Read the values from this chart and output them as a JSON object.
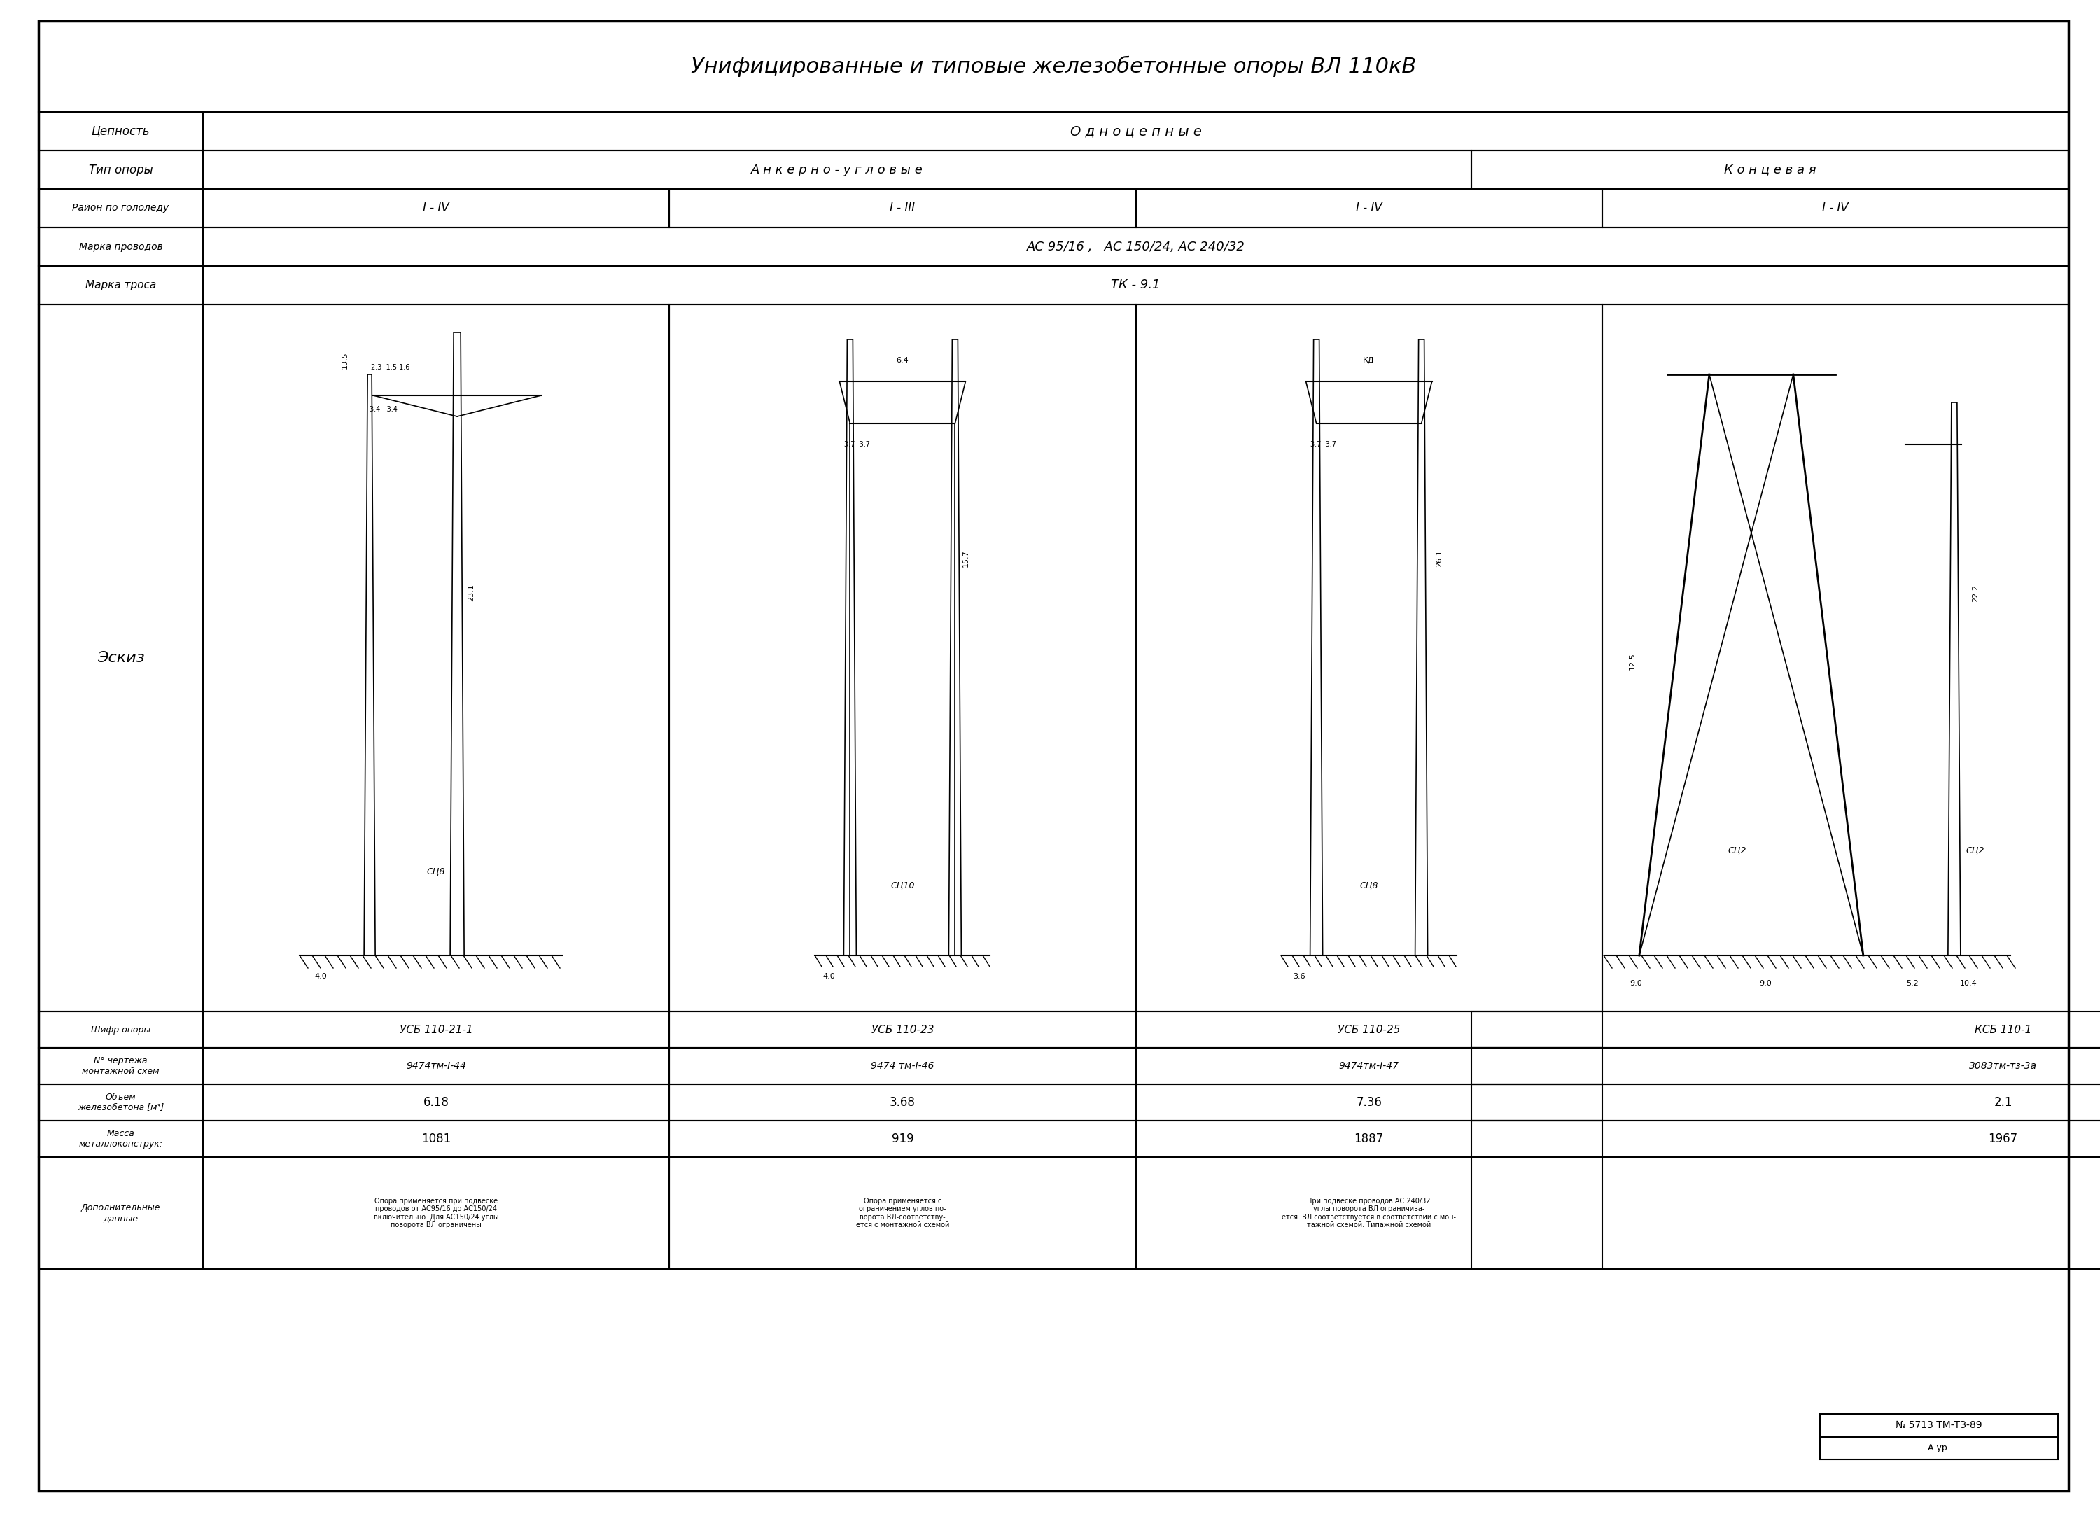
{
  "title": "Унифицированные и типовые железобетонные опоры ВЛ 110кВ",
  "bg_color": "#ffffff",
  "line_color": "#000000",
  "table": {
    "row_labels": [
      "Цепность",
      "Тип опоры",
      "Район по гололеду",
      "Марка проводов",
      "Марка троса"
    ],
    "sketch_label": "Эскиз",
    "col_groups": [
      {
        "name": "Одноцепные",
        "span": 4
      }
    ],
    "type_row": [
      "Анкерно - угловые",
      "",
      "",
      "Концевая"
    ],
    "raion_row": [
      "I - IV",
      "I - III",
      "I - IV",
      "I - IV"
    ],
    "marka_provodov": "АС 95/16 ,   АС 150/24, АС 240/32",
    "marka_trosa": "ТК - 9.1",
    "bottom_rows": {
      "shifr": [
        "УСБ 110-21-1",
        "УСБ 110-23",
        "УСБ 110-25",
        "КСБ 110-1"
      ],
      "chertezh": [
        "9474тм-I-44",
        "9474 тм-I-46",
        "9474тм-I-47",
        "3083тм-тз-3а"
      ],
      "objem": [
        "6.18",
        "3.68",
        "7.36",
        "2.1"
      ],
      "massa": [
        "1081",
        "919",
        "1887",
        "1967"
      ],
      "dop_label": "Дополнительные\nданные",
      "dop_data": [
        "Опора применяется при подвеске\nпроводов от АС95/16 до АС150/24\nвключительно. Для АС150/24 углы\nповорота ВЛ ограничены",
        "Опора применяется с\nограничением углов по-\nворота ВЛ-соответству-\nется с монтажной схемой",
        "При подвеске проводов АС 240/32\nуглы поворота ВЛ ограничива-\nется. ВЛ соответствуется в соответствии с мон-\nтажной схемой. Типажной схемой",
        ""
      ]
    }
  },
  "stamp": {
    "text": "№ 5713 ТМ-ТЗ-89",
    "subtext": "А ур."
  },
  "font_size_title": 22,
  "font_size_table": 13,
  "font_size_small": 10
}
